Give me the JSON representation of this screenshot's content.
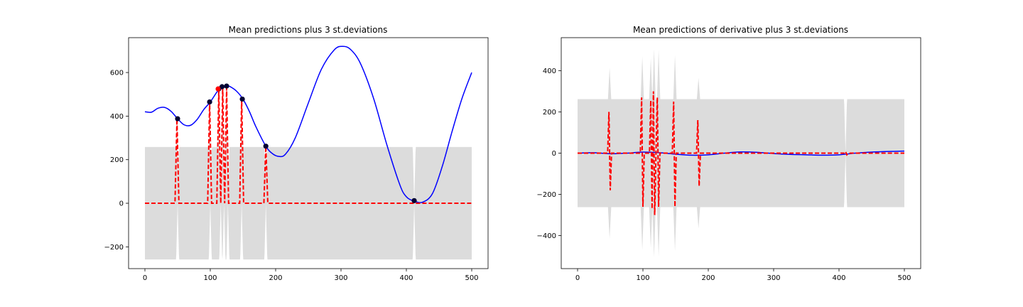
{
  "chart_data": [
    {
      "type": "line",
      "title": "Mean predictions plus 3 st.deviations",
      "xlabel": "",
      "ylabel": "",
      "xlim": [
        -25,
        525
      ],
      "ylim": [
        -300,
        760
      ],
      "xticks": [
        0,
        100,
        200,
        300,
        400,
        500
      ],
      "yticks": [
        -200,
        0,
        200,
        400,
        600
      ],
      "grid": false,
      "colors": {
        "band": "#dcdcdc",
        "mean": "#0000ff",
        "truth": "#ff0000",
        "observed": "#000033",
        "highlight": "#ff0000"
      },
      "band_base": [
        -258,
        258
      ],
      "band_gaps": [
        50,
        100,
        116,
        121,
        127,
        148,
        185,
        412
      ],
      "mean_line": {
        "x": [
          0,
          10,
          20,
          30,
          40,
          50,
          60,
          70,
          80,
          90,
          100,
          110,
          115,
          120,
          125,
          130,
          140,
          150,
          160,
          170,
          185,
          195,
          205,
          215,
          230,
          250,
          270,
          290,
          303,
          315,
          330,
          350,
          370,
          390,
          400,
          412,
          425,
          440,
          455,
          470,
          485,
          500
        ],
        "y": [
          420,
          418,
          436,
          440,
          422,
          388,
          360,
          358,
          385,
          430,
          465,
          510,
          525,
          535,
          540,
          536,
          515,
          478,
          420,
          350,
          262,
          228,
          215,
          225,
          300,
          460,
          615,
          705,
          720,
          705,
          640,
          480,
          270,
          85,
          30,
          10,
          5,
          45,
          170,
          330,
          480,
          600
        ]
      },
      "truth_line": {
        "x": [
          0,
          46,
          49,
          52,
          96,
          99,
          102,
          110,
          113,
          116,
          119,
          122,
          125,
          128,
          145,
          148,
          151,
          182,
          185,
          188,
          500
        ],
        "y": [
          0,
          0,
          388,
          0,
          0,
          465,
          0,
          0,
          525,
          0,
          535,
          0,
          530,
          0,
          0,
          478,
          0,
          0,
          262,
          0,
          0
        ]
      },
      "observations": {
        "x": [
          50,
          99,
          113,
          118,
          125,
          149,
          185,
          412
        ],
        "y": [
          388,
          465,
          525,
          535,
          538,
          478,
          262,
          12
        ]
      },
      "highlight_points": {
        "x": [
          112
        ],
        "y": [
          525
        ]
      }
    },
    {
      "type": "line",
      "title": "Mean predictions of derivative plus 3 st.deviations",
      "xlabel": "",
      "ylabel": "",
      "xlim": [
        -25,
        525
      ],
      "ylim": [
        -560,
        560
      ],
      "xticks": [
        0,
        100,
        200,
        300,
        400,
        500
      ],
      "yticks": [
        -400,
        -200,
        0,
        200,
        400
      ],
      "grid": false,
      "colors": {
        "band": "#dcdcdc",
        "mean": "#0000ff",
        "truth": "#ff0000"
      },
      "band_base": [
        -262,
        262
      ],
      "band_spikes": [
        {
          "x": 49,
          "amp": 415
        },
        {
          "x": 99,
          "amp": 470
        },
        {
          "x": 112,
          "amp": 460
        },
        {
          "x": 117,
          "amp": 505
        },
        {
          "x": 124,
          "amp": 500
        },
        {
          "x": 149,
          "amp": 475
        },
        {
          "x": 185,
          "amp": 365
        }
      ],
      "band_gaps": [
        410
      ],
      "mean_line": {
        "x": [
          0,
          25,
          50,
          75,
          100,
          125,
          150,
          175,
          200,
          225,
          250,
          275,
          300,
          325,
          350,
          375,
          400,
          425,
          450,
          475,
          500
        ],
        "y": [
          0,
          2,
          -3,
          0,
          5,
          2,
          -5,
          -10,
          -8,
          0,
          6,
          4,
          -2,
          -6,
          -8,
          -10,
          -8,
          0,
          5,
          8,
          10
        ]
      },
      "truth_line": {
        "x": [
          0,
          46,
          48,
          50,
          52,
          96,
          98,
          100,
          102,
          110,
          112,
          114,
          116,
          118,
          120,
          122,
          124,
          126,
          128,
          145,
          147,
          149,
          151,
          182,
          184,
          186,
          188,
          408,
          410,
          412,
          414,
          500
        ],
        "y": [
          0,
          0,
          200,
          -180,
          0,
          0,
          270,
          -260,
          0,
          0,
          255,
          -270,
          300,
          -300,
          0,
          270,
          -260,
          0,
          0,
          0,
          250,
          -260,
          0,
          0,
          160,
          -160,
          0,
          0,
          8,
          -8,
          0,
          0
        ]
      }
    }
  ]
}
